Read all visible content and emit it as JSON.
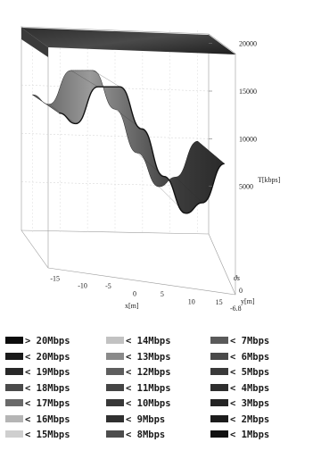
{
  "chart_data": {
    "type": "surface3d",
    "title": "",
    "xlabel": "x[m]",
    "ylabel": "y[m]",
    "zlabel": "T[kbps]",
    "angle_label": "ϑs",
    "x_ticks": [
      "-15",
      "-10",
      "-5",
      "0",
      "5",
      "10",
      "15"
    ],
    "y_ticks": [
      "0",
      "-6.8"
    ],
    "z_ticks": [
      "5000",
      "10000",
      "15000",
      "20000"
    ],
    "z_range": [
      0,
      21000
    ],
    "x_range": [
      -17,
      17
    ],
    "y_range": [
      -6.8,
      0.6
    ],
    "surface": [
      {
        "x": -17,
        "y_top": 0.6,
        "y_bottom": -6.8,
        "z": 20800
      },
      {
        "x": -15,
        "z": 14000
      },
      {
        "x": -12,
        "z": 13000
      },
      {
        "x": -8,
        "z": 16500
      },
      {
        "x": -4,
        "z": 16500
      },
      {
        "x": 0,
        "z": 12500
      },
      {
        "x": 4,
        "z": 8000
      },
      {
        "x": 8,
        "z": 4500
      },
      {
        "x": 11,
        "z": 5500
      },
      {
        "x": 15,
        "z": 9200
      }
    ],
    "legend": {
      "columns": [
        [
          {
            "label": "> 20Mbps",
            "color": "#0c0c0c"
          },
          {
            "label": "< 20Mbps",
            "color": "#1a1a1a"
          },
          {
            "label": "< 19Mbps",
            "color": "#282828"
          },
          {
            "label": "< 18Mbps",
            "color": "#4a4a4a"
          },
          {
            "label": "< 17Mbps",
            "color": "#6a6a6a"
          },
          {
            "label": "< 16Mbps",
            "color": "#b5b5b5"
          },
          {
            "label": "< 15Mbps",
            "color": "#cfcfcf"
          }
        ],
        [
          {
            "label": "< 14Mbps",
            "color": "#c2c2c2"
          },
          {
            "label": "< 13Mbps",
            "color": "#8a8a8a"
          },
          {
            "label": "< 12Mbps",
            "color": "#5e5e5e"
          },
          {
            "label": "< 11Mbps",
            "color": "#454545"
          },
          {
            "label": "< 10Mbps",
            "color": "#383838"
          },
          {
            "label": "< 9Mbps",
            "color": "#303030"
          },
          {
            "label": "< 8Mbps",
            "color": "#4d4d4d"
          }
        ],
        [
          {
            "label": "< 7Mbps",
            "color": "#5a5a5a"
          },
          {
            "label": "< 6Mbps",
            "color": "#4a4a4a"
          },
          {
            "label": "< 5Mbps",
            "color": "#3a3a3a"
          },
          {
            "label": "< 4Mbps",
            "color": "#2e2e2e"
          },
          {
            "label": "< 3Mbps",
            "color": "#242424"
          },
          {
            "label": "< 2Mbps",
            "color": "#1c1c1c"
          },
          {
            "label": "< 1Mbps",
            "color": "#101010"
          }
        ]
      ]
    }
  }
}
